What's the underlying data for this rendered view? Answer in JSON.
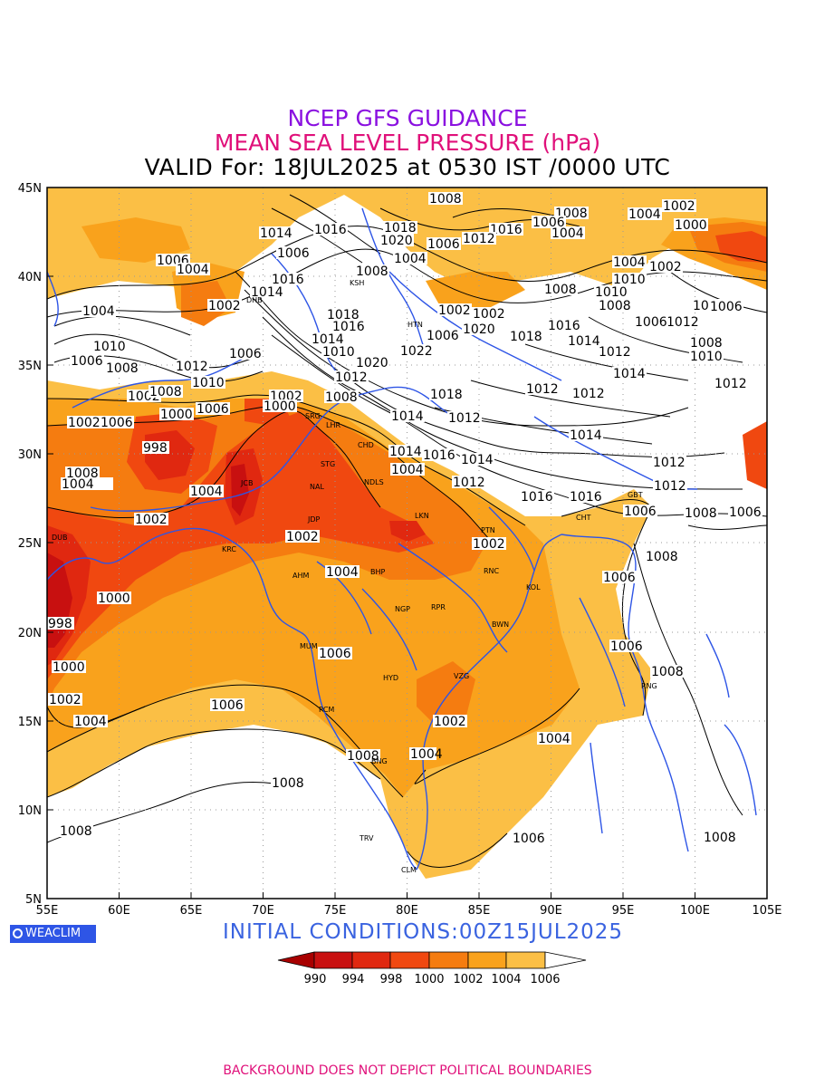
{
  "header": {
    "line1": "NCEP GFS GUIDANCE",
    "line2": "MEAN SEA LEVEL PRESSURE (hPa)",
    "line3": "VALID For: 18JUL2025 at 0530 IST /0000 UTC",
    "colors": {
      "line1": "#8a10e0",
      "line2": "#e0107a",
      "line3": "#000000"
    }
  },
  "map": {
    "lon_range": [
      55,
      105
    ],
    "lat_range": [
      5,
      45
    ],
    "lon_ticks": [
      "55E",
      "60E",
      "65E",
      "70E",
      "75E",
      "80E",
      "85E",
      "90E",
      "95E",
      "100E",
      "105E"
    ],
    "lat_ticks": [
      "45N",
      "40N",
      "35N",
      "30N",
      "25N",
      "20N",
      "15N",
      "10N",
      "5N"
    ],
    "grid": "dotted",
    "coastline_color": "#2e55e6",
    "contour_labels": [
      "1008",
      "1002",
      "1000",
      "1004",
      "1006",
      "1012",
      "1014",
      "1016",
      "1018",
      "1020",
      "998",
      "1010",
      "1022"
    ],
    "cities": [
      "DHB",
      "KSH",
      "HTN",
      "SRG",
      "LHR",
      "CHD",
      "STG",
      "NAL",
      "NDLS",
      "JCB",
      "JDP",
      "LKN",
      "PTN",
      "KRC",
      "DUB",
      "AHM",
      "BHP",
      "RNC",
      "KOL",
      "NGP",
      "RPR",
      "BWN",
      "MUM",
      "HYD",
      "VZG",
      "PCM",
      "BNG",
      "TRV",
      "CLM",
      "CHT",
      "GBT",
      "RNG"
    ]
  },
  "branding": {
    "logo": "WEACLIM",
    "logo_color": "#2e55e6"
  },
  "initial_conditions": "INITIAL  CONDITIONS:00Z15JUL2025",
  "colorbar": {
    "labels": [
      "990",
      "994",
      "998",
      "1000",
      "1002",
      "1004",
      "1006"
    ],
    "colors": [
      "#a80000",
      "#c81010",
      "#e02810",
      "#f04810",
      "#f57c10",
      "#f9a21c",
      "#fbbf45",
      "#ffffff"
    ]
  },
  "footer": "BACKGROUND DOES NOT DEPICT POLITICAL BOUNDARIES"
}
